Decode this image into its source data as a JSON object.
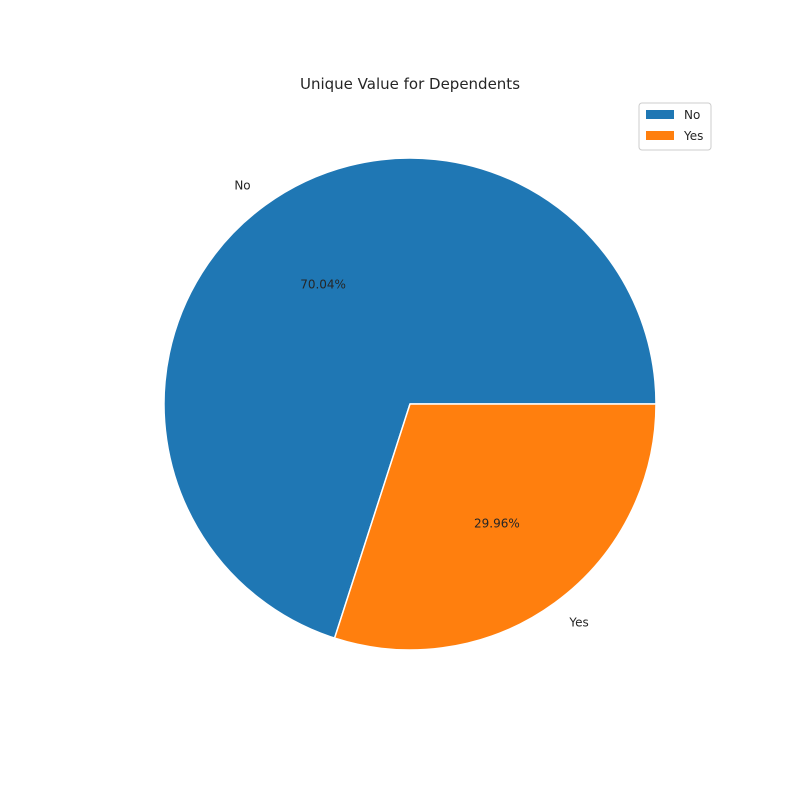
{
  "chart_data": {
    "type": "pie",
    "title": "Unique Value for Dependents",
    "categories": [
      "No",
      "Yes"
    ],
    "values": [
      70.04,
      29.96
    ],
    "percent_labels": [
      "70.04%",
      "29.96%"
    ],
    "colors": [
      "#1f77b4",
      "#ff7f0e"
    ],
    "legend_position": "top-right",
    "start_angle": 0,
    "direction": "counterclockwise"
  }
}
